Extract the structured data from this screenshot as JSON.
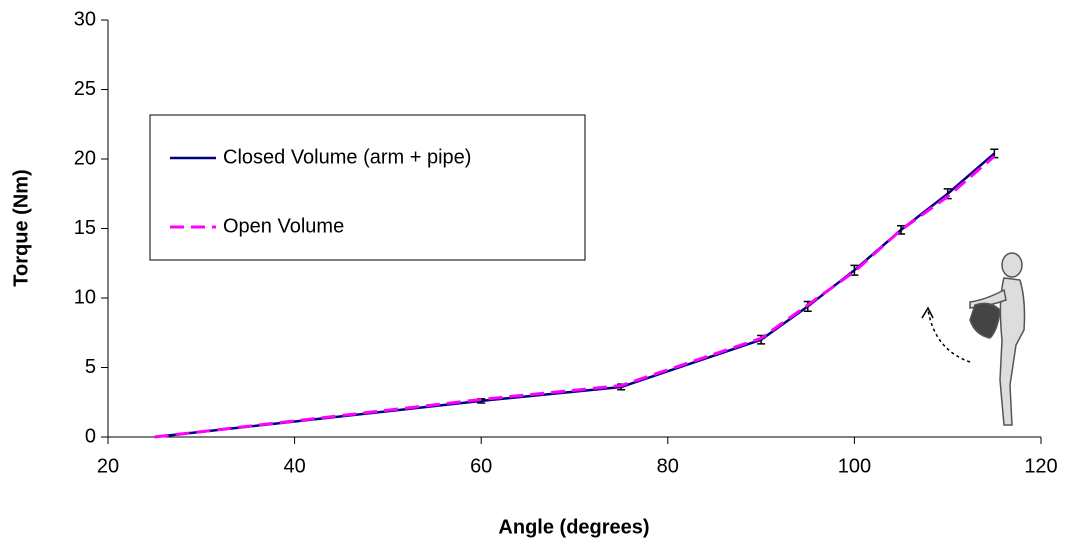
{
  "chart_data": {
    "type": "line",
    "x_label": "Angle (degrees)",
    "y_label": "Torque (Nm)",
    "x": [
      25,
      60,
      75,
      90,
      95,
      100,
      105,
      110,
      115
    ],
    "series": [
      {
        "name": "Closed Volume (arm + pipe)",
        "color": "#000080",
        "style": "solid",
        "values": [
          0,
          2.6,
          3.6,
          7.0,
          9.4,
          12.0,
          14.9,
          17.5,
          20.4
        ],
        "errors": [
          0,
          0.15,
          0.2,
          0.3,
          0.35,
          0.35,
          0.3,
          0.35,
          0.3
        ]
      },
      {
        "name": "Open Volume",
        "color": "#ff00ff",
        "style": "dashed",
        "values": [
          0,
          2.7,
          3.7,
          7.1,
          9.5,
          11.9,
          14.9,
          17.3,
          20.2
        ]
      }
    ],
    "xlim": [
      20,
      120
    ],
    "xticks": [
      20,
      40,
      60,
      80,
      100,
      120
    ],
    "ylim": [
      0,
      30
    ],
    "yticks": [
      0,
      5,
      10,
      15,
      20,
      25,
      30
    ],
    "grid": false
  }
}
